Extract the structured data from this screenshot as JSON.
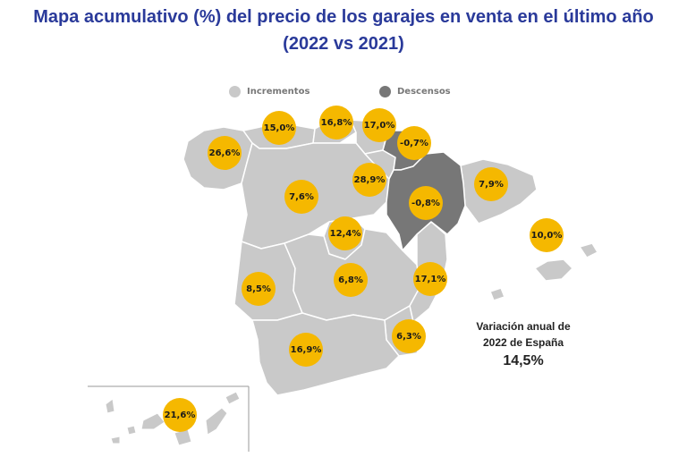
{
  "title_line1": "Mapa acumulativo (%) del precio de los garajes en venta en el último año",
  "title_line2": "(2022 vs 2021)",
  "legend": {
    "increase_label": "Incrementos",
    "decrease_label": "Descensos",
    "increase_color": "#c9c9c9",
    "decrease_color": "#777777"
  },
  "bubble_color": "#f5b800",
  "regions": [
    {
      "id": "galicia",
      "value": "26,6%"
    },
    {
      "id": "asturias",
      "value": "15,0%"
    },
    {
      "id": "cantabria",
      "value": "16,8%"
    },
    {
      "id": "pais-vasco",
      "value": "17,0%"
    },
    {
      "id": "navarra",
      "value": "-0,7%"
    },
    {
      "id": "la-rioja",
      "value": "28,9%"
    },
    {
      "id": "aragon",
      "value": "-0,8%"
    },
    {
      "id": "cataluna",
      "value": "7,9%"
    },
    {
      "id": "baleares",
      "value": "10,0%"
    },
    {
      "id": "castilla-y-leon",
      "value": "7,6%"
    },
    {
      "id": "madrid",
      "value": "12,4%"
    },
    {
      "id": "extremadura",
      "value": "8,5%"
    },
    {
      "id": "castilla-la-mancha",
      "value": "6,8%"
    },
    {
      "id": "comunidad-valenciana",
      "value": "17,1%"
    },
    {
      "id": "murcia",
      "value": "6,3%"
    },
    {
      "id": "andalucia",
      "value": "16,9%"
    },
    {
      "id": "canarias",
      "value": "21,6%"
    }
  ],
  "annotation": {
    "line1": "Variación anual de",
    "line2": "2022 de España",
    "value": "14,5%"
  }
}
